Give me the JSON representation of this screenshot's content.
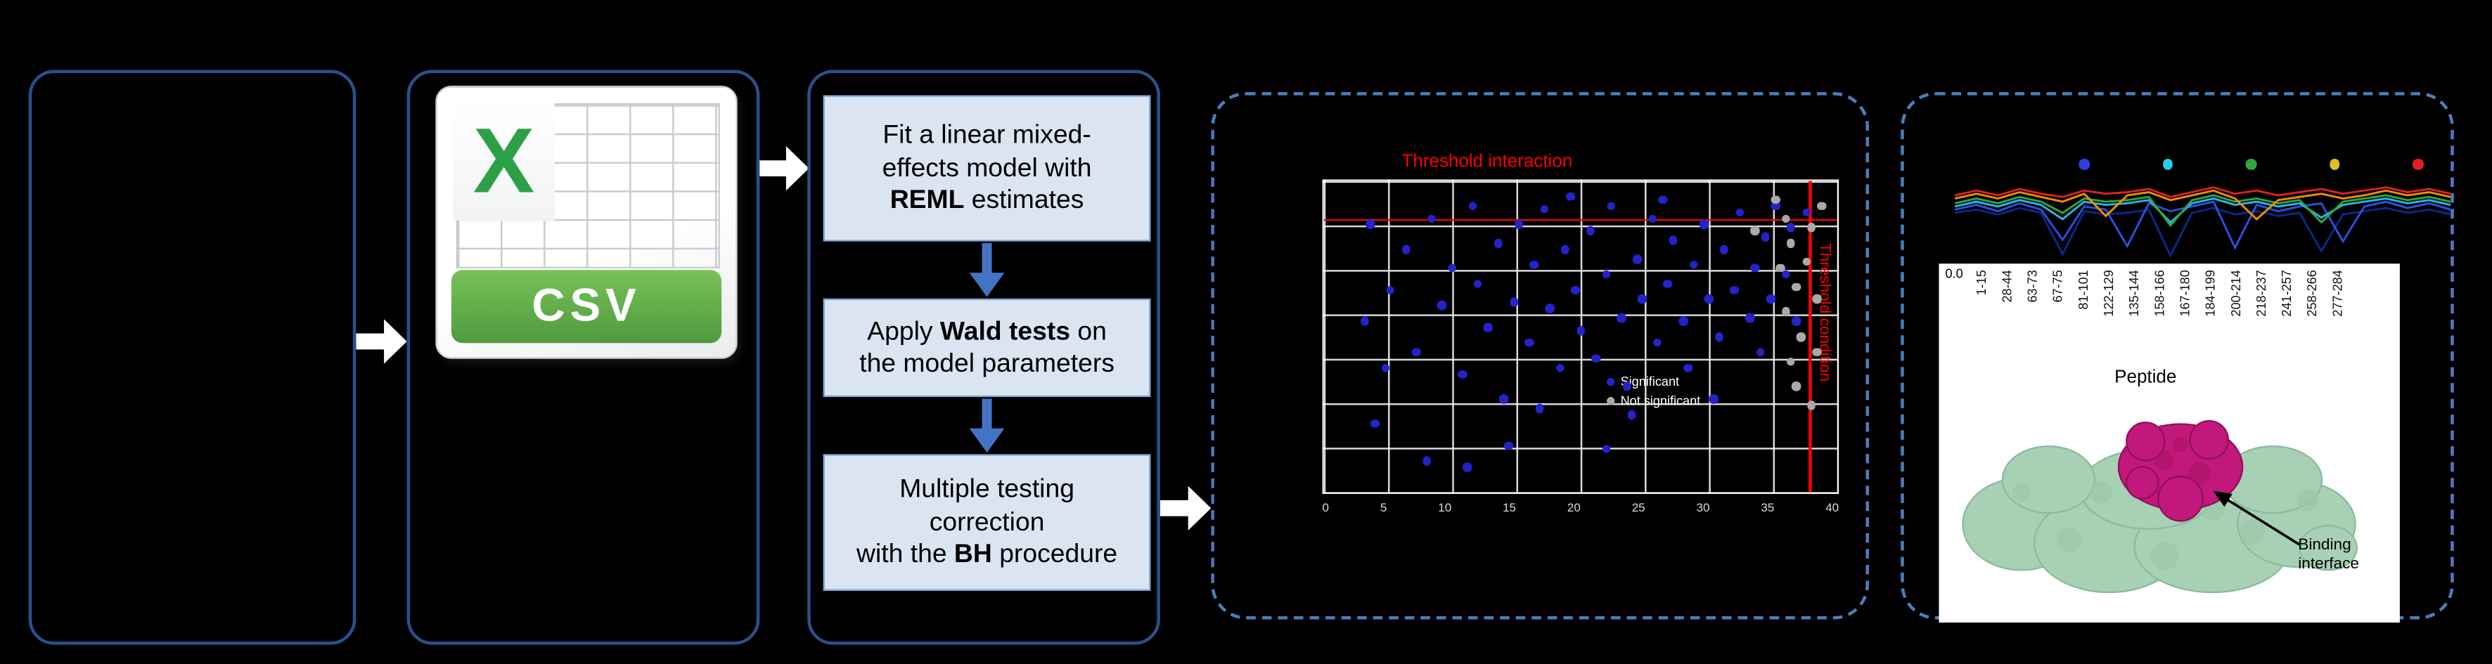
{
  "colors": {
    "blue_dot": "#2323cc",
    "gray_dot": "#a9a9a9",
    "threshold_red": "#ff0000",
    "accent_blue": "#4472c4",
    "panel_border": "#2a4f8e",
    "dashed_border": "#4a7ebb",
    "step_fill": "#dbe5f1",
    "csv_green": "#3f9c35"
  },
  "csv_icon": {
    "letter": "X",
    "label": "CSV"
  },
  "workflow": {
    "steps": [
      {
        "name": "reml",
        "lines": [
          [
            {
              "t": "Fit a linear mixed-"
            }
          ],
          [
            {
              "t": "effects model with"
            }
          ],
          [
            {
              "t": "REML",
              "b": true
            },
            {
              "t": " estimates"
            }
          ]
        ]
      },
      {
        "name": "wald",
        "lines": [
          [
            {
              "t": "Apply "
            },
            {
              "t": "Wald tests",
              "b": true
            },
            {
              "t": " on"
            }
          ],
          [
            {
              "t": "the model parameters"
            }
          ]
        ]
      },
      {
        "name": "bh",
        "lines": [
          [
            {
              "t": "Multiple testing"
            }
          ],
          [
            {
              "t": "correction"
            }
          ],
          [
            {
              "t": "with the "
            },
            {
              "t": "BH",
              "b": true
            },
            {
              "t": " procedure"
            }
          ]
        ]
      }
    ]
  },
  "scatter": {
    "title": "Threshold interaction",
    "side_label": "Threshold condition",
    "x_ticks": [
      "0",
      "5",
      "10",
      "15",
      "20",
      "25",
      "30",
      "35",
      "40"
    ],
    "legend": [
      {
        "label": "Significant",
        "color": "#2323cc"
      },
      {
        "label": "Not significant",
        "color": "#a9a9a9"
      }
    ],
    "blue_points": [
      [
        9,
        14
      ],
      [
        13,
        35
      ],
      [
        16,
        22
      ],
      [
        18,
        55
      ],
      [
        21,
        12
      ],
      [
        23,
        40
      ],
      [
        25,
        28
      ],
      [
        27,
        62
      ],
      [
        29,
        8
      ],
      [
        30,
        33
      ],
      [
        32,
        47
      ],
      [
        34,
        20
      ],
      [
        35,
        70
      ],
      [
        37,
        39
      ],
      [
        38,
        14
      ],
      [
        40,
        52
      ],
      [
        41,
        27
      ],
      [
        43,
        9
      ],
      [
        44,
        41
      ],
      [
        46,
        60
      ],
      [
        47,
        22
      ],
      [
        49,
        35
      ],
      [
        50,
        48
      ],
      [
        52,
        16
      ],
      [
        53,
        57
      ],
      [
        55,
        30
      ],
      [
        56,
        8
      ],
      [
        58,
        44
      ],
      [
        59,
        66
      ],
      [
        61,
        25
      ],
      [
        62,
        38
      ],
      [
        64,
        12
      ],
      [
        65,
        52
      ],
      [
        67,
        33
      ],
      [
        68,
        19
      ],
      [
        70,
        45
      ],
      [
        71,
        60
      ],
      [
        72,
        27
      ],
      [
        74,
        14
      ],
      [
        75,
        38
      ],
      [
        77,
        50
      ],
      [
        78,
        22
      ],
      [
        80,
        35
      ],
      [
        81,
        10
      ],
      [
        83,
        44
      ],
      [
        84,
        28
      ],
      [
        86,
        18
      ],
      [
        87,
        38
      ],
      [
        88,
        8
      ],
      [
        76,
        70
      ],
      [
        36,
        85
      ],
      [
        20,
        90
      ],
      [
        10,
        78
      ],
      [
        28,
        92
      ],
      [
        55,
        86
      ],
      [
        90,
        30
      ],
      [
        91,
        15
      ],
      [
        92,
        45
      ],
      [
        66,
        6
      ],
      [
        48,
        5
      ],
      [
        12,
        60
      ],
      [
        8,
        45
      ],
      [
        85,
        55
      ],
      [
        60,
        75
      ],
      [
        42,
        73
      ],
      [
        94,
        10
      ]
    ],
    "gray_points": [
      [
        88,
        6
      ],
      [
        90,
        12
      ],
      [
        91,
        20
      ],
      [
        89,
        28
      ],
      [
        92,
        34
      ],
      [
        90,
        42
      ],
      [
        93,
        50
      ],
      [
        91,
        58
      ],
      [
        94,
        26
      ],
      [
        95,
        15
      ],
      [
        96,
        38
      ],
      [
        92,
        66
      ],
      [
        95,
        72
      ],
      [
        97,
        8
      ],
      [
        84,
        16
      ],
      [
        96,
        55
      ]
    ]
  },
  "profile": {
    "legend_colors": [
      "#2a3fe0",
      "#2cc8ee",
      "#2fa63c",
      "#e0c020",
      "#e02020"
    ],
    "series": [
      {
        "color": "#062a8c",
        "values": [
          44,
          40,
          46,
          38,
          44,
          96,
          42,
          46,
          44,
          40,
          98,
          44,
          38,
          46,
          42,
          48,
          44,
          92,
          46,
          42,
          38,
          44,
          40,
          46
        ]
      },
      {
        "color": "#2b50e0",
        "values": [
          40,
          34,
          42,
          32,
          40,
          78,
          36,
          40,
          86,
          32,
          42,
          36,
          30,
          88,
          34,
          42,
          36,
          32,
          80,
          36,
          30,
          38,
          32,
          40
        ]
      },
      {
        "color": "#27b6e6",
        "values": [
          36,
          30,
          36,
          28,
          34,
          52,
          30,
          34,
          32,
          28,
          56,
          32,
          26,
          34,
          30,
          36,
          32,
          50,
          34,
          30,
          26,
          32,
          28,
          34
        ]
      },
      {
        "color": "#2fa63c",
        "values": [
          32,
          26,
          32,
          24,
          30,
          44,
          26,
          30,
          28,
          24,
          60,
          28,
          22,
          30,
          26,
          32,
          28,
          56,
          30,
          26,
          22,
          28,
          24,
          30
        ]
      },
      {
        "color": "#f08c00",
        "values": [
          26,
          20,
          26,
          18,
          24,
          30,
          20,
          48,
          22,
          18,
          28,
          22,
          16,
          26,
          52,
          28,
          24,
          20,
          26,
          22,
          16,
          22,
          18,
          24
        ]
      },
      {
        "color": "#e02020",
        "values": [
          22,
          16,
          22,
          14,
          20,
          24,
          16,
          20,
          18,
          14,
          24,
          18,
          12,
          20,
          16,
          22,
          18,
          14,
          20,
          16,
          12,
          18,
          14,
          20
        ]
      }
    ]
  },
  "peptide_axis": {
    "y_tick": "0.0",
    "labels": [
      "1-15",
      "28-44",
      "63-73",
      "67-75",
      "81-101",
      "122-129",
      "135-144",
      "158-166",
      "167-180",
      "184-199",
      "200-214",
      "218-237",
      "241-257",
      "258-266",
      "277-284"
    ],
    "title": "Peptide"
  },
  "structure": {
    "annotation": "Binding interface"
  }
}
